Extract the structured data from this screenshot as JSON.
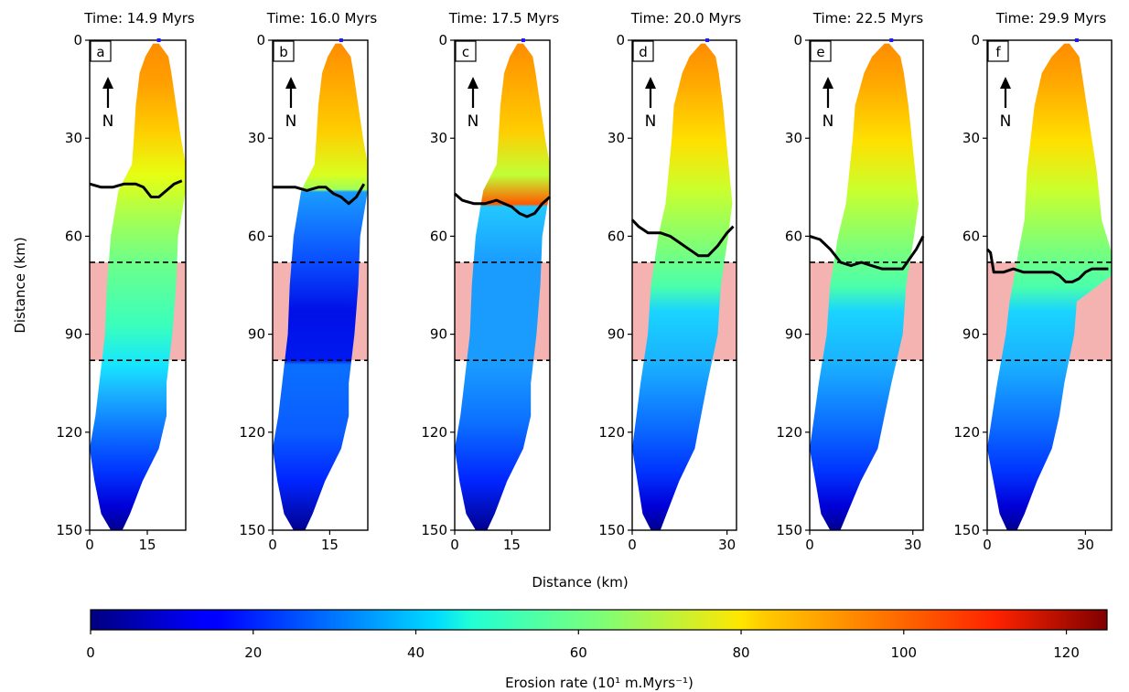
{
  "chart_data": [
    {
      "type": "heatmap",
      "panel_label": "a",
      "title": "Time: 14.9 Myrs",
      "x_ticks": [
        "0",
        "15"
      ],
      "xlim": [
        0,
        25
      ],
      "front": [
        [
          0,
          44
        ],
        [
          3,
          45
        ],
        [
          6,
          45
        ],
        [
          9,
          44
        ],
        [
          12,
          44
        ],
        [
          14,
          45
        ],
        [
          16,
          48
        ],
        [
          18,
          48
        ],
        [
          20,
          46
        ],
        [
          22,
          44
        ],
        [
          24,
          43
        ]
      ]
    },
    {
      "type": "heatmap",
      "panel_label": "b",
      "title": "Time: 16.0 Myrs",
      "x_ticks": [
        "0",
        "15"
      ],
      "xlim": [
        0,
        25
      ],
      "front": [
        [
          0,
          45
        ],
        [
          3,
          45
        ],
        [
          6,
          45
        ],
        [
          9,
          46
        ],
        [
          12,
          45
        ],
        [
          14,
          45
        ],
        [
          16,
          47
        ],
        [
          18,
          48
        ],
        [
          20,
          50
        ],
        [
          22,
          48
        ],
        [
          24,
          44
        ]
      ]
    },
    {
      "type": "heatmap",
      "panel_label": "c",
      "title": "Time: 17.5 Myrs",
      "x_ticks": [
        "0",
        "15"
      ],
      "xlim": [
        0,
        25
      ],
      "front": [
        [
          0,
          47
        ],
        [
          2,
          49
        ],
        [
          5,
          50
        ],
        [
          8,
          50
        ],
        [
          11,
          49
        ],
        [
          13,
          50
        ],
        [
          15,
          51
        ],
        [
          17,
          53
        ],
        [
          19,
          54
        ],
        [
          21,
          53
        ],
        [
          23,
          50
        ],
        [
          25,
          48
        ]
      ]
    },
    {
      "type": "heatmap",
      "panel_label": "d",
      "title": "Time: 20.0 Myrs",
      "x_ticks": [
        "0",
        "30"
      ],
      "xlim": [
        0,
        33
      ],
      "front": [
        [
          0,
          55
        ],
        [
          2,
          57
        ],
        [
          5,
          59
        ],
        [
          9,
          59
        ],
        [
          12,
          60
        ],
        [
          15,
          62
        ],
        [
          18,
          64
        ],
        [
          21,
          66
        ],
        [
          24,
          66
        ],
        [
          27,
          63
        ],
        [
          30,
          59
        ],
        [
          32,
          57
        ]
      ]
    },
    {
      "type": "heatmap",
      "panel_label": "e",
      "title": "Time: 22.5 Myrs",
      "x_ticks": [
        "0",
        "30"
      ],
      "xlim": [
        0,
        33
      ],
      "front": [
        [
          0,
          60
        ],
        [
          3,
          61
        ],
        [
          6,
          64
        ],
        [
          9,
          68
        ],
        [
          12,
          69
        ],
        [
          15,
          68
        ],
        [
          18,
          69
        ],
        [
          21,
          70
        ],
        [
          24,
          70
        ],
        [
          27,
          70
        ],
        [
          29,
          67
        ],
        [
          31,
          64
        ],
        [
          33,
          60
        ]
      ]
    },
    {
      "type": "heatmap",
      "panel_label": "f",
      "title": "Time: 29.9 Myrs",
      "x_ticks": [
        "0",
        "30"
      ],
      "xlim": [
        0,
        38
      ],
      "front": [
        [
          0,
          64
        ],
        [
          1,
          65
        ],
        [
          2,
          71
        ],
        [
          5,
          71
        ],
        [
          8,
          70
        ],
        [
          11,
          71
        ],
        [
          14,
          71
        ],
        [
          17,
          71
        ],
        [
          20,
          71
        ],
        [
          22,
          72
        ],
        [
          24,
          74
        ],
        [
          26,
          74
        ],
        [
          28,
          73
        ],
        [
          30,
          71
        ],
        [
          32,
          70
        ],
        [
          35,
          70
        ],
        [
          37,
          70
        ]
      ]
    }
  ],
  "ylabel": "Distance (km)",
  "xlabel": "Distance (km)",
  "ylim": [
    0,
    150
  ],
  "y_ticks": [
    "0",
    "30",
    "60",
    "90",
    "120",
    "150"
  ],
  "shaded_band_km": [
    68,
    98
  ],
  "north_label": "N",
  "colorbar": {
    "label": "Erosion rate (10¹ m.Myrs⁻¹)",
    "range": [
      0,
      125
    ],
    "ticks": [
      "0",
      "20",
      "40",
      "60",
      "80",
      "100",
      "120"
    ],
    "colormap": "jet"
  },
  "colors": {
    "band": "#f4b2b0",
    "front_line": "#000000"
  }
}
